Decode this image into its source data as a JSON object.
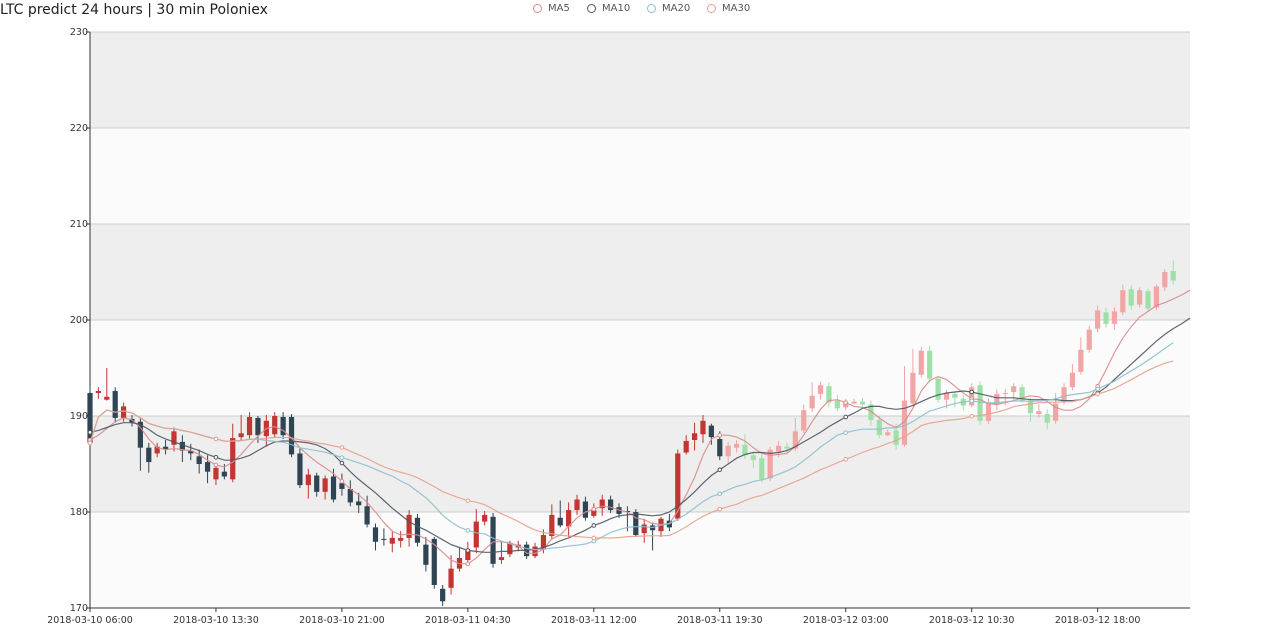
{
  "header": {
    "title": "LTC predict 24 hours | 30 min Poloniex"
  },
  "legend": [
    {
      "label": "MA5",
      "color": "#d98c8c"
    },
    {
      "label": "MA10",
      "color": "#4d5563"
    },
    {
      "label": "MA20",
      "color": "#8cbfcc"
    },
    {
      "label": "MA30",
      "color": "#e8a08c"
    }
  ],
  "colors": {
    "up": "#c23531",
    "down": "#2f4554",
    "predict_up": "#f2a5a5",
    "predict_down": "#9fe0a8",
    "band_gray": "#eeeeee",
    "band_white": "#fbfbfb",
    "grid": "#cccccc"
  },
  "chart_data": {
    "type": "candlestick",
    "title": "LTC predict 24 hours | 30 min Poloniex",
    "ylim": [
      170,
      230
    ],
    "yticks": [
      170,
      180,
      190,
      200,
      210,
      220,
      230
    ],
    "xlim": [
      0,
      131
    ],
    "xticks": [
      {
        "i": 0,
        "label": "2018-03-10 06:00"
      },
      {
        "i": 15,
        "label": "2018-03-10 13:30"
      },
      {
        "i": 30,
        "label": "2018-03-10 21:00"
      },
      {
        "i": 45,
        "label": "2018-03-11 04:30"
      },
      {
        "i": 60,
        "label": "2018-03-11 12:00"
      },
      {
        "i": 75,
        "label": "2018-03-11 19:30"
      },
      {
        "i": 90,
        "label": "2018-03-12 03:00"
      },
      {
        "i": 105,
        "label": "2018-03-12 10:30"
      },
      {
        "i": 120,
        "label": "2018-03-12 18:00"
      }
    ],
    "grid": true,
    "legend_position": "top-center",
    "predict_start_index": 76,
    "candles": [
      [
        192.4,
        187.2,
        193.2,
        186.6
      ],
      [
        192.4,
        192.6,
        193.0,
        191.8
      ],
      [
        191.7,
        192.0,
        195.0,
        191.6
      ],
      [
        192.6,
        189.8,
        193.0,
        189.3
      ],
      [
        189.8,
        191.0,
        191.4,
        189.4
      ],
      [
        189.7,
        189.3,
        190.1,
        188.9
      ],
      [
        189.4,
        186.7,
        189.8,
        184.3
      ],
      [
        186.7,
        185.2,
        187.2,
        184.1
      ],
      [
        186.1,
        186.8,
        187.2,
        185.7
      ],
      [
        186.8,
        186.5,
        187.5,
        186.0
      ],
      [
        187.0,
        188.4,
        188.8,
        186.3
      ],
      [
        187.3,
        186.4,
        188.0,
        185.2
      ],
      [
        186.4,
        186.1,
        187.1,
        185.4
      ],
      [
        185.8,
        185.0,
        186.5,
        184.0
      ],
      [
        185.2,
        184.2,
        185.9,
        183.0
      ],
      [
        183.4,
        184.6,
        185.1,
        182.8
      ],
      [
        184.2,
        183.7,
        185.0,
        183.4
      ],
      [
        183.4,
        187.7,
        189.2,
        183.1
      ],
      [
        187.8,
        188.2,
        190.1,
        187.5
      ],
      [
        188.0,
        189.9,
        190.4,
        187.6
      ],
      [
        189.8,
        188.0,
        190.0,
        187.2
      ],
      [
        187.9,
        189.5,
        190.1,
        186.8
      ],
      [
        188.1,
        190.0,
        190.4,
        187.7
      ],
      [
        189.9,
        188.0,
        190.4,
        187.6
      ],
      [
        189.9,
        186.0,
        190.2,
        185.7
      ],
      [
        186.1,
        182.8,
        186.6,
        182.5
      ],
      [
        182.8,
        183.9,
        184.5,
        181.4
      ],
      [
        183.8,
        182.1,
        184.1,
        181.6
      ],
      [
        182.1,
        183.5,
        183.8,
        181.3
      ],
      [
        183.7,
        181.3,
        184.5,
        181.0
      ],
      [
        183.0,
        182.4,
        184.0,
        181.7
      ],
      [
        182.4,
        181.0,
        183.3,
        180.6
      ],
      [
        181.1,
        180.7,
        182.0,
        179.9
      ],
      [
        180.6,
        178.7,
        181.7,
        178.4
      ],
      [
        178.4,
        176.9,
        178.8,
        176.0
      ],
      [
        177.2,
        177.1,
        178.3,
        176.5
      ],
      [
        176.7,
        177.3,
        178.0,
        175.8
      ],
      [
        177.0,
        177.3,
        178.0,
        176.3
      ],
      [
        177.3,
        179.7,
        180.2,
        176.4
      ],
      [
        179.4,
        176.8,
        179.8,
        176.4
      ],
      [
        176.6,
        174.5,
        177.4,
        173.8
      ],
      [
        177.2,
        172.4,
        177.4,
        172.0
      ],
      [
        172.0,
        170.7,
        172.4,
        170.2
      ],
      [
        172.1,
        174.1,
        175.5,
        171.4
      ],
      [
        174.1,
        175.2,
        176.3,
        173.8
      ],
      [
        175.0,
        176.0,
        176.9,
        174.4
      ],
      [
        176.3,
        179.0,
        180.3,
        175.7
      ],
      [
        179.0,
        179.7,
        180.1,
        178.6
      ],
      [
        179.5,
        174.6,
        179.9,
        174.2
      ],
      [
        175.0,
        175.3,
        176.9,
        174.6
      ],
      [
        175.6,
        176.7,
        177.0,
        175.3
      ],
      [
        176.3,
        176.6,
        177.0,
        175.9
      ],
      [
        176.6,
        175.4,
        176.9,
        175.1
      ],
      [
        175.4,
        176.4,
        176.8,
        175.2
      ],
      [
        176.1,
        177.6,
        178.2,
        175.7
      ],
      [
        177.5,
        179.7,
        180.8,
        177.2
      ],
      [
        179.4,
        178.6,
        181.2,
        178.4
      ],
      [
        178.5,
        180.2,
        181.0,
        177.4
      ],
      [
        180.2,
        181.3,
        181.8,
        179.7
      ],
      [
        181.1,
        179.4,
        181.6,
        179.1
      ],
      [
        179.6,
        180.2,
        180.9,
        179.4
      ],
      [
        180.4,
        181.3,
        181.8,
        179.6
      ],
      [
        181.3,
        180.2,
        181.7,
        179.9
      ],
      [
        180.5,
        179.8,
        180.9,
        179.4
      ],
      [
        180.1,
        180.0,
        180.6,
        178.0
      ],
      [
        180.0,
        177.6,
        180.3,
        177.4
      ],
      [
        177.8,
        178.7,
        179.3,
        176.8
      ],
      [
        178.6,
        178.1,
        178.9,
        176.0
      ],
      [
        178.0,
        179.3,
        179.5,
        177.4
      ],
      [
        179.1,
        178.4,
        179.8,
        178.0
      ],
      [
        179.3,
        186.1,
        186.5,
        179.1
      ],
      [
        186.2,
        187.4,
        188.0,
        186.0
      ],
      [
        187.5,
        188.2,
        189.3,
        186.4
      ],
      [
        188.1,
        189.5,
        190.1,
        187.2
      ],
      [
        189.0,
        187.8,
        189.2,
        187.0
      ],
      [
        187.6,
        185.8,
        188.4,
        185.4
      ],
      [
        185.8,
        186.9,
        187.3,
        185.1
      ],
      [
        186.7,
        187.1,
        187.5,
        186.2
      ],
      [
        187.0,
        185.9,
        188.1,
        185.5
      ],
      [
        185.9,
        185.4,
        186.3,
        184.6
      ],
      [
        185.6,
        183.4,
        186.0,
        183.1
      ],
      [
        183.5,
        186.5,
        186.8,
        183.2
      ],
      [
        186.3,
        186.9,
        187.4,
        185.7
      ],
      [
        186.8,
        186.6,
        187.2,
        186.2
      ],
      [
        186.6,
        188.4,
        189.8,
        186.3
      ],
      [
        188.5,
        190.6,
        191.2,
        188.2
      ],
      [
        190.8,
        192.1,
        193.5,
        190.4
      ],
      [
        192.3,
        193.2,
        193.6,
        191.7
      ],
      [
        193.1,
        191.4,
        193.5,
        190.9
      ],
      [
        191.6,
        190.8,
        192.2,
        190.5
      ],
      [
        190.9,
        191.4,
        191.8,
        190.6
      ],
      [
        191.3,
        191.5,
        191.8,
        191.2
      ],
      [
        191.5,
        191.2,
        191.9,
        191.0
      ],
      [
        191.2,
        189.6,
        191.6,
        189.0
      ],
      [
        189.6,
        188.0,
        190.0,
        187.7
      ],
      [
        188.0,
        188.3,
        188.6,
        187.9
      ],
      [
        188.5,
        187.0,
        189.2,
        186.5
      ],
      [
        187.0,
        191.6,
        195.2,
        186.8
      ],
      [
        191.3,
        194.5,
        197.0,
        191.0
      ],
      [
        194.3,
        196.8,
        197.2,
        194.0
      ],
      [
        196.8,
        193.9,
        197.3,
        193.5
      ],
      [
        193.9,
        191.7,
        194.1,
        191.4
      ],
      [
        191.7,
        192.4,
        192.7,
        190.8
      ],
      [
        192.3,
        191.9,
        192.6,
        190.9
      ],
      [
        191.8,
        191.1,
        192.2,
        190.6
      ],
      [
        191.1,
        193.0,
        193.4,
        190.9
      ],
      [
        193.2,
        189.5,
        193.6,
        189.1
      ],
      [
        189.5,
        191.4,
        191.8,
        189.2
      ],
      [
        191.2,
        192.3,
        192.8,
        190.6
      ],
      [
        192.4,
        192.4,
        192.8,
        191.1
      ],
      [
        192.5,
        193.1,
        193.4,
        191.5
      ],
      [
        193.0,
        191.6,
        193.3,
        191.4
      ],
      [
        191.6,
        190.3,
        191.9,
        189.4
      ],
      [
        190.2,
        190.5,
        191.2,
        189.8
      ],
      [
        190.2,
        189.3,
        190.7,
        188.6
      ],
      [
        189.5,
        191.3,
        192.4,
        189.2
      ],
      [
        191.5,
        193.0,
        193.4,
        191.2
      ],
      [
        193.0,
        194.5,
        195.4,
        192.7
      ],
      [
        194.6,
        196.9,
        198.2,
        194.3
      ],
      [
        196.9,
        199.0,
        199.4,
        196.6
      ],
      [
        199.1,
        201.0,
        201.5,
        198.7
      ],
      [
        200.8,
        199.6,
        201.3,
        199.2
      ],
      [
        199.6,
        200.9,
        201.3,
        199.0
      ],
      [
        200.8,
        203.1,
        203.7,
        200.5
      ],
      [
        203.2,
        201.5,
        203.6,
        201.1
      ],
      [
        201.6,
        203.1,
        203.4,
        201.3
      ],
      [
        203.0,
        201.2,
        203.3,
        200.9
      ],
      [
        201.3,
        203.5,
        203.7,
        201.0
      ],
      [
        203.4,
        205.0,
        205.3,
        203.0
      ],
      [
        205.1,
        204.1,
        206.2,
        203.7
      ]
    ],
    "ma5": [
      187.5,
      188.0,
      188.7,
      189.4,
      189.8,
      189.6,
      188.8,
      187.6,
      186.7,
      186.5,
      186.6,
      186.5,
      186.4,
      186.0,
      185.4,
      184.9,
      184.7,
      185.2,
      186.0,
      187.0,
      187.9,
      188.7,
      188.9,
      188.5,
      187.7,
      186.7,
      185.9,
      185.2,
      184.6,
      184.0,
      183.2,
      182.4,
      181.8,
      181.0,
      180.0,
      178.9,
      178.0,
      177.6,
      177.7,
      177.6,
      177.2,
      176.6,
      175.8,
      175.0,
      174.6,
      174.6,
      175.2,
      176.1,
      176.9,
      176.9,
      176.8,
      176.5,
      175.7,
      175.7,
      176.1,
      177.2,
      177.6,
      178.5,
      179.4,
      180.0,
      180.3,
      180.6,
      180.5,
      180.2,
      180.0,
      179.4,
      179.2,
      178.8,
      178.7,
      178.8,
      180.1,
      181.8,
      183.6,
      185.9,
      187.6,
      188.0,
      188.0,
      187.8,
      187.4,
      186.7,
      186.1,
      185.9,
      186.0,
      186.1,
      186.8,
      188.0,
      189.4,
      190.7,
      191.6,
      191.7,
      191.4,
      191.0,
      190.9,
      190.5,
      189.8,
      189.2,
      188.8,
      189.4,
      190.8,
      192.6,
      193.7,
      194.1,
      193.8,
      193.1,
      192.4,
      191.8,
      191.7,
      191.3,
      191.2,
      191.4,
      191.6,
      191.9,
      192.1,
      192.0,
      191.5,
      190.9,
      190.6,
      190.6,
      191.0,
      191.8,
      193.1,
      194.8,
      196.6,
      198.1,
      199.3,
      200.3,
      200.9,
      201.5,
      201.8,
      202.2,
      202.6,
      203.1
    ],
    "ma10": [
      188.3,
      188.5,
      188.8,
      189.1,
      189.3,
      189.3,
      189.1,
      188.6,
      188.0,
      187.6,
      187.3,
      187.0,
      186.7,
      186.4,
      186.0,
      185.7,
      185.4,
      185.4,
      185.6,
      185.9,
      186.4,
      186.9,
      187.3,
      187.4,
      187.4,
      187.3,
      187.2,
      187.0,
      186.6,
      186.0,
      185.1,
      184.2,
      183.4,
      182.7,
      182.0,
      181.2,
      180.4,
      179.7,
      179.0,
      178.5,
      178.1,
      177.6,
      177.1,
      176.6,
      176.3,
      176.0,
      175.9,
      175.8,
      175.8,
      175.9,
      175.9,
      176.0,
      176.0,
      176.1,
      176.3,
      176.6,
      177.0,
      177.3,
      177.7,
      178.1,
      178.6,
      178.9,
      179.3,
      179.6,
      179.7,
      179.8,
      179.7,
      179.6,
      179.7,
      180.0,
      180.6,
      181.3,
      182.1,
      183.0,
      183.8,
      184.4,
      185.0,
      185.6,
      186.0,
      186.2,
      186.2,
      186.1,
      186.2,
      186.4,
      186.8,
      187.3,
      187.8,
      188.3,
      188.9,
      189.4,
      189.9,
      190.3,
      190.8,
      191.0,
      191.0,
      190.8,
      190.7,
      190.8,
      191.1,
      191.5,
      191.9,
      192.2,
      192.4,
      192.5,
      192.6,
      192.5,
      192.3,
      192.1,
      191.9,
      191.9,
      191.9,
      191.8,
      191.7,
      191.7,
      191.7,
      191.7,
      191.6,
      191.6,
      191.7,
      192.0,
      192.4,
      193.0,
      193.8,
      194.6,
      195.4,
      196.2,
      197.0,
      197.8,
      198.5,
      199.1,
      199.6,
      200.2
    ]
  }
}
